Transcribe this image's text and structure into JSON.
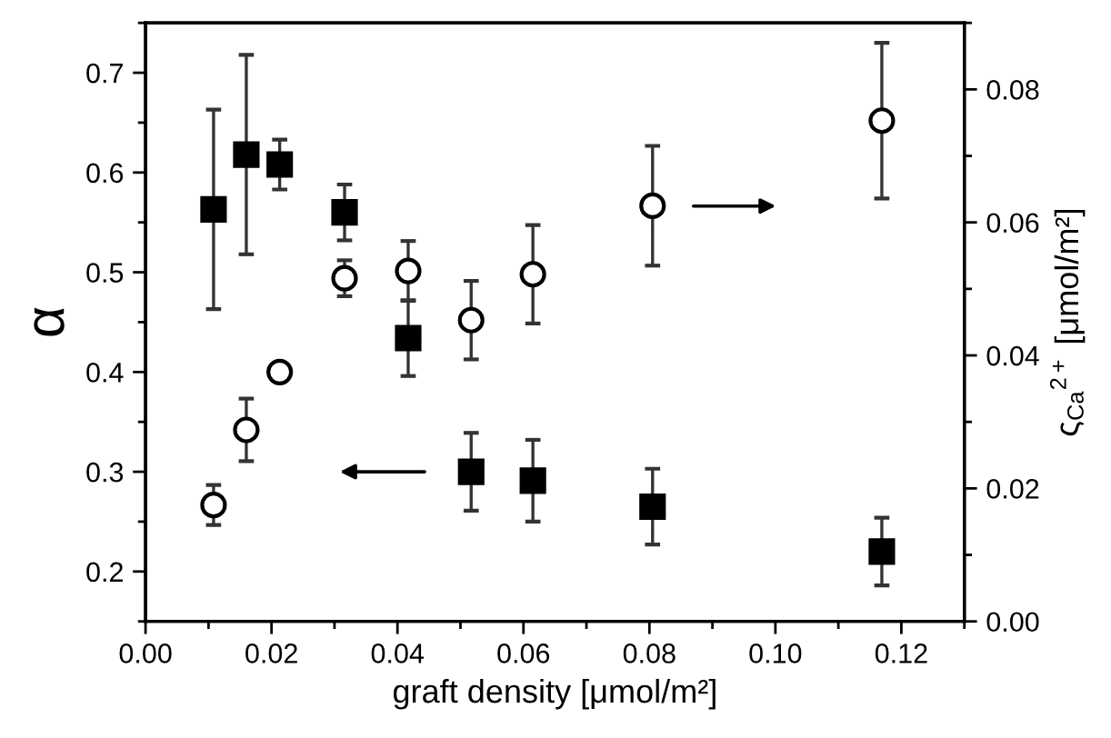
{
  "chart_data": {
    "type": "scatter",
    "xlabel": "graft density [μmol/m²]",
    "ylabel": "α",
    "y2label": "ς$_{Ca}$$^{2+}$ [μmol/m²]",
    "xlim": [
      0,
      0.13
    ],
    "xticks": [
      {
        "value": 0,
        "label": "0.00"
      },
      {
        "value": 0.02,
        "label": "0.02"
      },
      {
        "value": 0.04,
        "label": "0.04"
      },
      {
        "value": 0.06,
        "label": "0.06"
      },
      {
        "value": 0.08,
        "label": "0.08"
      },
      {
        "value": 0.1,
        "label": "0.10"
      },
      {
        "value": 0.12,
        "label": "0.12"
      }
    ],
    "ylim": [
      0.15,
      0.75
    ],
    "yticks": [
      0.2,
      0.3,
      0.4,
      0.5,
      0.6,
      0.7
    ],
    "y2lim": [
      0,
      0.09
    ],
    "y2ticks": [
      {
        "value": 0,
        "label": "0.00"
      },
      {
        "value": 0.02,
        "label": "0.02"
      },
      {
        "value": 0.04,
        "label": "0.04"
      },
      {
        "value": 0.06,
        "label": "0.06"
      },
      {
        "value": 0.08,
        "label": "0.08"
      }
    ],
    "grid": false,
    "legend": false,
    "series": [
      {
        "color": "#000000",
        "marker": "square",
        "x": [
          0.0108,
          0.016,
          0.0213,
          0.0316,
          0.0417,
          0.0517,
          0.0615,
          0.0805,
          0.1169
        ],
        "values": [
          0.563,
          0.618,
          0.608,
          0.56,
          0.434,
          0.3,
          0.291,
          0.265,
          0.22
        ],
        "errors": [
          0.1,
          0.1,
          0.025,
          0.028,
          0.038,
          0.039,
          0.041,
          0.038,
          0.034
        ]
      },
      {
        "color": "#000000",
        "marker": "circle",
        "axis": "y2",
        "x": [
          0.0108,
          0.016,
          0.0213,
          0.0316,
          0.0417,
          0.0517,
          0.0615,
          0.0805,
          0.1169
        ],
        "values": [
          0.0175,
          0.0288,
          0.0375,
          0.0516,
          0.0527,
          0.0453,
          0.0522,
          0.0625,
          0.0753
        ],
        "errors": [
          0.003,
          0.0047,
          0.001,
          0.0027,
          0.0045,
          0.0059,
          0.0074,
          0.009,
          0.0117
        ]
      }
    ]
  }
}
